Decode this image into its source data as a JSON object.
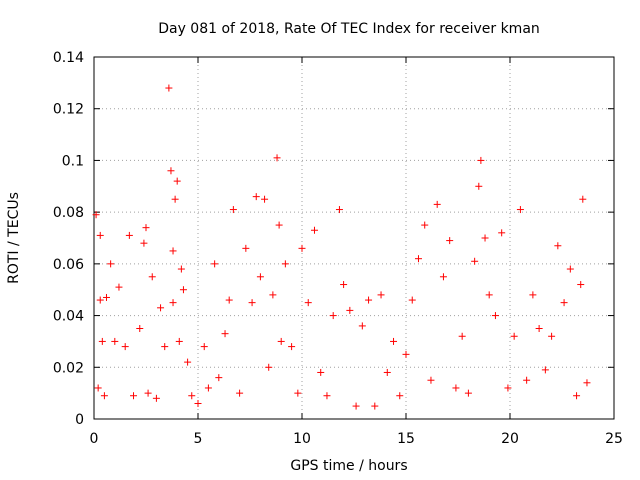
{
  "chart_data": {
    "type": "scatter",
    "title": "Day 081 of 2018, Rate Of TEC Index for receiver kman",
    "xlabel": "GPS time / hours",
    "ylabel": "ROTI / TECUs",
    "xlim": [
      0,
      25
    ],
    "ylim": [
      0,
      0.14
    ],
    "xticks": [
      0,
      5,
      10,
      15,
      20,
      25
    ],
    "yticks": [
      0,
      0.02,
      0.04,
      0.06,
      0.08,
      0.1,
      0.12,
      0.14
    ],
    "xtick_labels": [
      "0",
      "5",
      "10",
      "15",
      "20",
      "25"
    ],
    "ytick_labels": [
      "0",
      "0.02",
      "0.04",
      "0.06",
      "0.08",
      "0.1",
      "0.12",
      "0.14"
    ],
    "grid": true,
    "marker": "+",
    "color": "#ff0000",
    "series": [
      {
        "name": "ROTI",
        "x": [
          0.1,
          0.2,
          0.3,
          0.3,
          0.4,
          0.5,
          0.6,
          0.8,
          1.0,
          1.2,
          1.5,
          1.7,
          1.9,
          2.2,
          2.4,
          2.5,
          2.6,
          2.8,
          3.0,
          3.2,
          3.4,
          3.6,
          3.7,
          3.8,
          3.8,
          3.9,
          4.0,
          4.1,
          4.2,
          4.3,
          4.5,
          4.7,
          5.0,
          5.3,
          5.5,
          5.8,
          6.0,
          6.3,
          6.5,
          6.7,
          7.0,
          7.3,
          7.6,
          7.8,
          8.0,
          8.2,
          8.4,
          8.6,
          8.8,
          8.9,
          9.0,
          9.2,
          9.5,
          9.8,
          10.0,
          10.3,
          10.6,
          10.9,
          11.2,
          11.5,
          11.8,
          12.0,
          12.3,
          12.6,
          12.9,
          13.2,
          13.5,
          13.8,
          14.1,
          14.4,
          14.7,
          15.0,
          15.3,
          15.6,
          15.9,
          16.2,
          16.5,
          16.8,
          17.1,
          17.4,
          17.7,
          18.0,
          18.3,
          18.5,
          18.6,
          18.8,
          19.0,
          19.3,
          19.6,
          19.9,
          20.2,
          20.5,
          20.8,
          21.1,
          21.4,
          21.7,
          22.0,
          22.3,
          22.6,
          22.9,
          23.2,
          23.4,
          23.5,
          23.7
        ],
        "y": [
          0.079,
          0.012,
          0.071,
          0.046,
          0.03,
          0.009,
          0.047,
          0.06,
          0.03,
          0.051,
          0.028,
          0.071,
          0.009,
          0.035,
          0.068,
          0.074,
          0.01,
          0.055,
          0.008,
          0.043,
          0.028,
          0.128,
          0.096,
          0.065,
          0.045,
          0.085,
          0.092,
          0.03,
          0.058,
          0.05,
          0.022,
          0.009,
          0.006,
          0.028,
          0.012,
          0.06,
          0.016,
          0.033,
          0.046,
          0.081,
          0.01,
          0.066,
          0.045,
          0.086,
          0.055,
          0.085,
          0.02,
          0.048,
          0.101,
          0.075,
          0.03,
          0.06,
          0.028,
          0.01,
          0.066,
          0.045,
          0.073,
          0.018,
          0.009,
          0.04,
          0.081,
          0.052,
          0.042,
          0.005,
          0.036,
          0.046,
          0.005,
          0.048,
          0.018,
          0.03,
          0.009,
          0.025,
          0.046,
          0.062,
          0.075,
          0.015,
          0.083,
          0.055,
          0.069,
          0.012,
          0.032,
          0.01,
          0.061,
          0.09,
          0.1,
          0.07,
          0.048,
          0.04,
          0.072,
          0.012,
          0.032,
          0.081,
          0.015,
          0.048,
          0.035,
          0.019,
          0.032,
          0.067,
          0.045,
          0.058,
          0.009,
          0.052,
          0.085,
          0.014
        ]
      }
    ]
  }
}
